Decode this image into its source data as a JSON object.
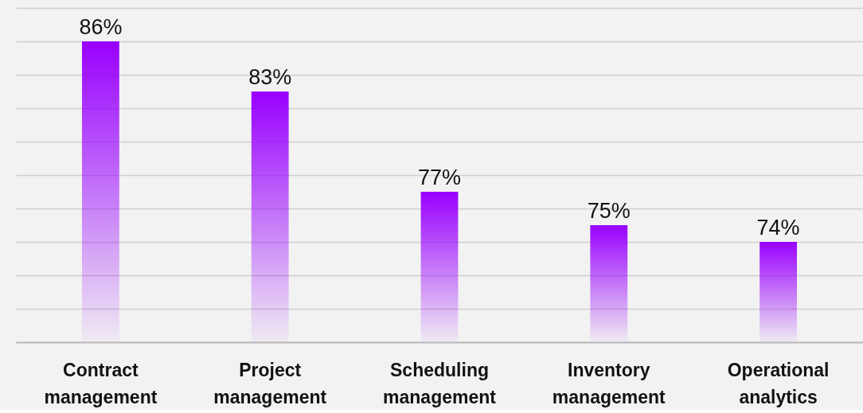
{
  "chart_data": {
    "type": "bar",
    "categories": [
      "Contract management",
      "Project management",
      "Scheduling management",
      "Inventory management",
      "Operational analytics"
    ],
    "values": [
      86,
      83,
      77,
      75,
      74
    ],
    "color": "#9900ff",
    "data_labels": true,
    "value_labels": [
      "86%",
      "83%",
      "77%",
      "75%",
      "74%"
    ],
    "ylim": [
      68,
      88
    ],
    "yticks": [
      {
        "value": 68,
        "label": null
      },
      {
        "value": 70,
        "label": null
      },
      {
        "value": 72,
        "label": null
      },
      {
        "value": 74,
        "label": null
      },
      {
        "value": 76,
        "label": null
      },
      {
        "value": 78,
        "label": null
      },
      {
        "value": 80,
        "label": null
      },
      {
        "value": 82,
        "label": null
      },
      {
        "value": 84,
        "label": null
      },
      {
        "value": 86,
        "label": null
      },
      {
        "value": 88,
        "label": null
      }
    ],
    "grid": "y",
    "tick_labels": "x"
  }
}
